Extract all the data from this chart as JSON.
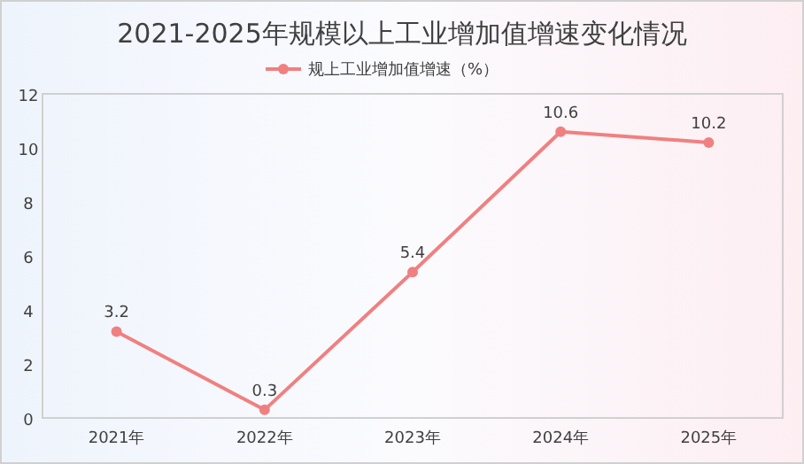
{
  "chart_data": {
    "type": "line",
    "title": "2021-2025年规模以上工业增加值增速变化情况",
    "categories": [
      "2021年",
      "2022年",
      "2023年",
      "2024年",
      "2025年"
    ],
    "series": [
      {
        "name": "规上工业增加值增速（%）",
        "color": "#f08080",
        "values": [
          3.2,
          0.3,
          5.4,
          10.6,
          10.2
        ]
      }
    ],
    "ylim": [
      0,
      12
    ],
    "yticks": [
      0,
      2,
      4,
      6,
      8,
      10,
      12
    ],
    "data_labels": true,
    "legend": "top",
    "marker": "circle",
    "grid": false
  }
}
